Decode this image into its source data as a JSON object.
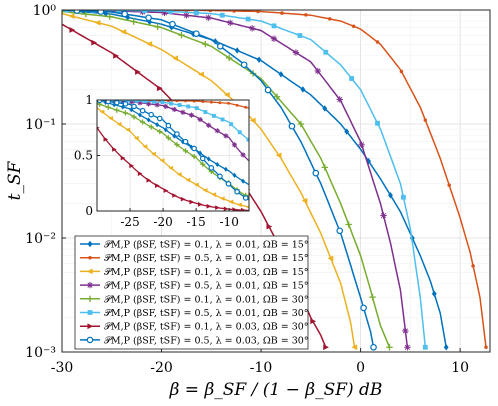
{
  "chart_data": {
    "type": "line",
    "xlabel": "β = β_SF / (1 − β_SF) dB",
    "ylabel": "t_SF",
    "xlim": [
      -30,
      13
    ],
    "ylim": [
      0.001,
      1
    ],
    "y_scale": "log",
    "x_ticks": [
      -30,
      -20,
      -10,
      0,
      10
    ],
    "x_tick_labels": [
      "-30",
      "-20",
      "-10",
      "0",
      "10"
    ],
    "y_ticks": [
      0.001,
      0.01,
      0.1,
      1
    ],
    "y_tick_labels": [
      "10⁻³",
      "10⁻²",
      "10⁻¹",
      "10⁰"
    ],
    "grid": true,
    "legend_position": "bottom-left",
    "series": [
      {
        "name": "𝒫M,P (βSF, tSF) = 0.1, λ = 0.01, ΩB = 15°",
        "color": "#0072BD",
        "marker": "diamond",
        "x": [
          -30,
          -25,
          -20,
          -15,
          -10,
          -5,
          -2,
          0,
          2,
          4,
          6,
          7,
          8,
          8.6
        ],
        "y": [
          1,
          0.92,
          0.75,
          0.55,
          0.36,
          0.18,
          0.1,
          0.06,
          0.033,
          0.017,
          0.007,
          0.0042,
          0.0022,
          0.0011
        ]
      },
      {
        "name": "𝒫M,P (βSF, tSF) = 0.5, λ = 0.01, ΩB = 15°",
        "color": "#D95319",
        "marker": "dot",
        "x": [
          -30,
          -25,
          -20,
          -15,
          -10,
          -5,
          -2,
          0,
          2,
          4,
          6,
          8,
          10,
          11,
          12,
          12.6
        ],
        "y": [
          1,
          0.999,
          0.995,
          0.99,
          0.97,
          0.9,
          0.8,
          0.68,
          0.5,
          0.3,
          0.14,
          0.05,
          0.015,
          0.0075,
          0.003,
          0.0011
        ]
      },
      {
        "name": "𝒫M,P (βSF, tSF) = 0.1, λ = 0.03, ΩB = 15°",
        "color": "#EDB120",
        "marker": "triangle-left",
        "x": [
          -30,
          -25,
          -20,
          -15,
          -12,
          -10,
          -8,
          -6,
          -4,
          -2,
          -1,
          -0.6
        ],
        "y": [
          0.93,
          0.72,
          0.45,
          0.24,
          0.14,
          0.09,
          0.05,
          0.025,
          0.011,
          0.004,
          0.0018,
          0.0011
        ]
      },
      {
        "name": "𝒫M,P (βSF, tSF) = 0.5, λ = 0.01, ΩB = 15°",
        "color": "#7E2F8E",
        "marker": "star",
        "x": [
          -30,
          -25,
          -20,
          -15,
          -10,
          -5,
          -2,
          0,
          2,
          3,
          4,
          4.7
        ],
        "y": [
          1,
          0.985,
          0.95,
          0.85,
          0.66,
          0.35,
          0.16,
          0.07,
          0.02,
          0.009,
          0.0035,
          0.0011
        ]
      },
      {
        "name": "𝒫M,P (βSF, tSF) = 0.1, λ = 0.01, ΩB = 30°",
        "color": "#77AC30",
        "marker": "plus",
        "x": [
          -30,
          -25,
          -20,
          -15,
          -10,
          -6,
          -4,
          -2,
          0,
          1,
          2,
          2.9
        ],
        "y": [
          0.97,
          0.87,
          0.7,
          0.48,
          0.25,
          0.1,
          0.05,
          0.02,
          0.007,
          0.0035,
          0.0017,
          0.0011
        ]
      },
      {
        "name": "𝒫M,P (βSF, tSF) = 0.5, λ = 0.01, ΩB = 30°",
        "color": "#4DBEEE",
        "marker": "square",
        "x": [
          -30,
          -25,
          -20,
          -15,
          -10,
          -5,
          -2,
          0,
          2,
          4,
          5,
          6,
          6.5
        ],
        "y": [
          1,
          0.995,
          0.98,
          0.93,
          0.8,
          0.55,
          0.33,
          0.2,
          0.09,
          0.03,
          0.012,
          0.003,
          0.0011
        ]
      },
      {
        "name": "𝒫M,P (βSF, tSF) = 0.1, λ = 0.03, ΩB = 30°",
        "color": "#A2142F",
        "marker": "triangle-right",
        "x": [
          -30,
          -25,
          -20,
          -15,
          -12,
          -10,
          -8,
          -6,
          -5,
          -4,
          -3.5
        ],
        "y": [
          0.75,
          0.42,
          0.2,
          0.07,
          0.032,
          0.017,
          0.008,
          0.0032,
          0.002,
          0.0014,
          0.0011
        ]
      },
      {
        "name": "𝒫M,P (βSF, tSF) = 0.5, λ = 0.03, ΩB = 30°",
        "color": "#0072BD",
        "marker": "circle",
        "x": [
          -30,
          -25,
          -20,
          -15,
          -12,
          -10,
          -8,
          -6,
          -4,
          -2,
          0,
          1,
          1.3
        ],
        "y": [
          1,
          0.96,
          0.82,
          0.55,
          0.35,
          0.24,
          0.14,
          0.07,
          0.03,
          0.011,
          0.003,
          0.0015,
          0.0011
        ]
      }
    ],
    "inset": {
      "xlim": [
        -30,
        -7
      ],
      "ylim": [
        0,
        1
      ],
      "y_scale": "linear",
      "x_ticks": [
        -25,
        -20,
        -15,
        -10
      ],
      "x_tick_labels": [
        "-25",
        "-20",
        "-15",
        "-10"
      ],
      "y_ticks": [
        0,
        0.5,
        1
      ],
      "y_tick_labels": [
        "0",
        "0.5",
        "1"
      ],
      "grid": true
    }
  }
}
